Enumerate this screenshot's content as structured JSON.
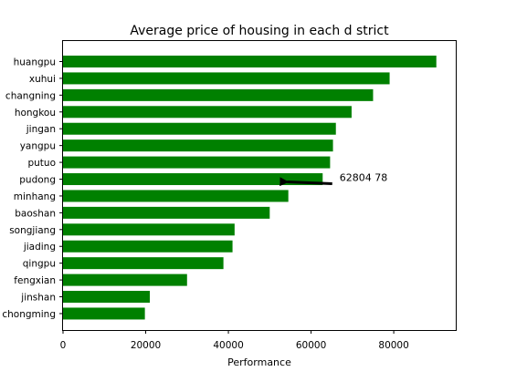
{
  "chart_data": {
    "type": "bar",
    "orientation": "horizontal",
    "title": "Average price of housing in each d strict",
    "xlabel": "Performance",
    "ylabel": "",
    "categories": [
      "huangpu",
      "xuhui",
      "changning",
      "hongkou",
      "jingan",
      "yangpu",
      "putuo",
      "pudong",
      "minhang",
      "baoshan",
      "songjiang",
      "jiading",
      "qingpu",
      "fengxian",
      "jinshan",
      "chongming"
    ],
    "values": [
      90300,
      79000,
      75000,
      69800,
      66000,
      65300,
      64600,
      62805,
      54500,
      50000,
      41500,
      41000,
      38800,
      30000,
      21000,
      19800
    ],
    "xlim": [
      0,
      95000
    ],
    "xticks": [
      0,
      20000,
      40000,
      60000,
      80000
    ],
    "xtick_labels": [
      "0",
      "20000",
      "40000",
      "60000",
      "80000"
    ],
    "bar_color": "#008000",
    "grid": false,
    "annotation": {
      "text": "62804 78",
      "target_category": "pudong",
      "target_value": 52000,
      "text_value": 66000
    }
  }
}
